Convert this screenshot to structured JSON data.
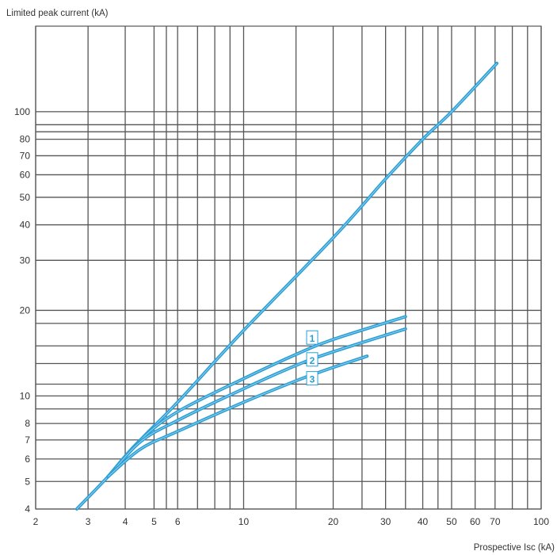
{
  "chart_data": {
    "type": "line",
    "title": "",
    "ylabel": "Limited peak current (kA)",
    "xlabel": "Prospective Isc (kA)",
    "x_scale": "log",
    "y_scale": "log",
    "xlim": [
      2,
      100
    ],
    "ylim": [
      4,
      200
    ],
    "grid": true,
    "x_ticks": [
      {
        "v": 2,
        "label": "2"
      },
      {
        "v": 3,
        "label": "3"
      },
      {
        "v": 4,
        "label": "4"
      },
      {
        "v": 5,
        "label": "5"
      },
      {
        "v": 6,
        "label": "6"
      },
      {
        "v": 10,
        "label": "10"
      },
      {
        "v": 20,
        "label": "20"
      },
      {
        "v": 30,
        "label": "30"
      },
      {
        "v": 40,
        "label": "40"
      },
      {
        "v": 50,
        "label": "50"
      },
      {
        "v": 60,
        "label": "60"
      },
      {
        "v": 70,
        "label": "70"
      },
      {
        "v": 100,
        "label": "100"
      }
    ],
    "y_ticks": [
      {
        "v": 4,
        "label": "4"
      },
      {
        "v": 5,
        "label": "5"
      },
      {
        "v": 6,
        "label": "6"
      },
      {
        "v": 7,
        "label": "7"
      },
      {
        "v": 8,
        "label": "8"
      },
      {
        "v": 10,
        "label": "10"
      },
      {
        "v": 20,
        "label": "20"
      },
      {
        "v": 30,
        "label": "30"
      },
      {
        "v": 40,
        "label": "40"
      },
      {
        "v": 50,
        "label": "50"
      },
      {
        "v": 60,
        "label": "60"
      },
      {
        "v": 70,
        "label": "70"
      },
      {
        "v": 80,
        "label": "80"
      },
      {
        "v": 100,
        "label": "100"
      }
    ],
    "extra_x_gridlines": [
      5.5,
      7,
      8,
      9,
      15,
      25,
      35,
      45,
      80,
      90
    ],
    "extra_y_gridlines": [
      9,
      18,
      15,
      13,
      11,
      90,
      85
    ],
    "series": [
      {
        "name": "",
        "values": [
          [
            2.75,
            4.0
          ],
          [
            3.5,
            5.2
          ],
          [
            4.5,
            7.0
          ],
          [
            6,
            9.5
          ],
          [
            10,
            17
          ],
          [
            20,
            36
          ],
          [
            30,
            58
          ],
          [
            40,
            80
          ],
          [
            50,
            100
          ],
          [
            71,
            148
          ]
        ]
      },
      {
        "name": "1",
        "values": [
          [
            3.5,
            5.2
          ],
          [
            4.5,
            7.0
          ],
          [
            6,
            8.8
          ],
          [
            10,
            11.5
          ],
          [
            15,
            14
          ],
          [
            20,
            15.8
          ],
          [
            35,
            19
          ]
        ]
      },
      {
        "name": "2",
        "values": [
          [
            3.5,
            5.2
          ],
          [
            4.5,
            6.9
          ],
          [
            6,
            8.2
          ],
          [
            10,
            10.6
          ],
          [
            15,
            12.8
          ],
          [
            20,
            14.3
          ],
          [
            35,
            17.2
          ]
        ]
      },
      {
        "name": "3",
        "values": [
          [
            3.5,
            5.2
          ],
          [
            4.5,
            6.5
          ],
          [
            6,
            7.5
          ],
          [
            10,
            9.5
          ],
          [
            15,
            11.3
          ],
          [
            20,
            12.6
          ],
          [
            26,
            13.8
          ]
        ]
      }
    ],
    "annotations": [
      {
        "text": "1",
        "x": 17,
        "y": 16.0
      },
      {
        "text": "2",
        "x": 17,
        "y": 13.4
      },
      {
        "text": "3",
        "x": 17,
        "y": 11.5
      }
    ],
    "colors": {
      "curve": "#2a9fd6",
      "grid": "#555555",
      "label_box": "#2a9fd6"
    }
  }
}
